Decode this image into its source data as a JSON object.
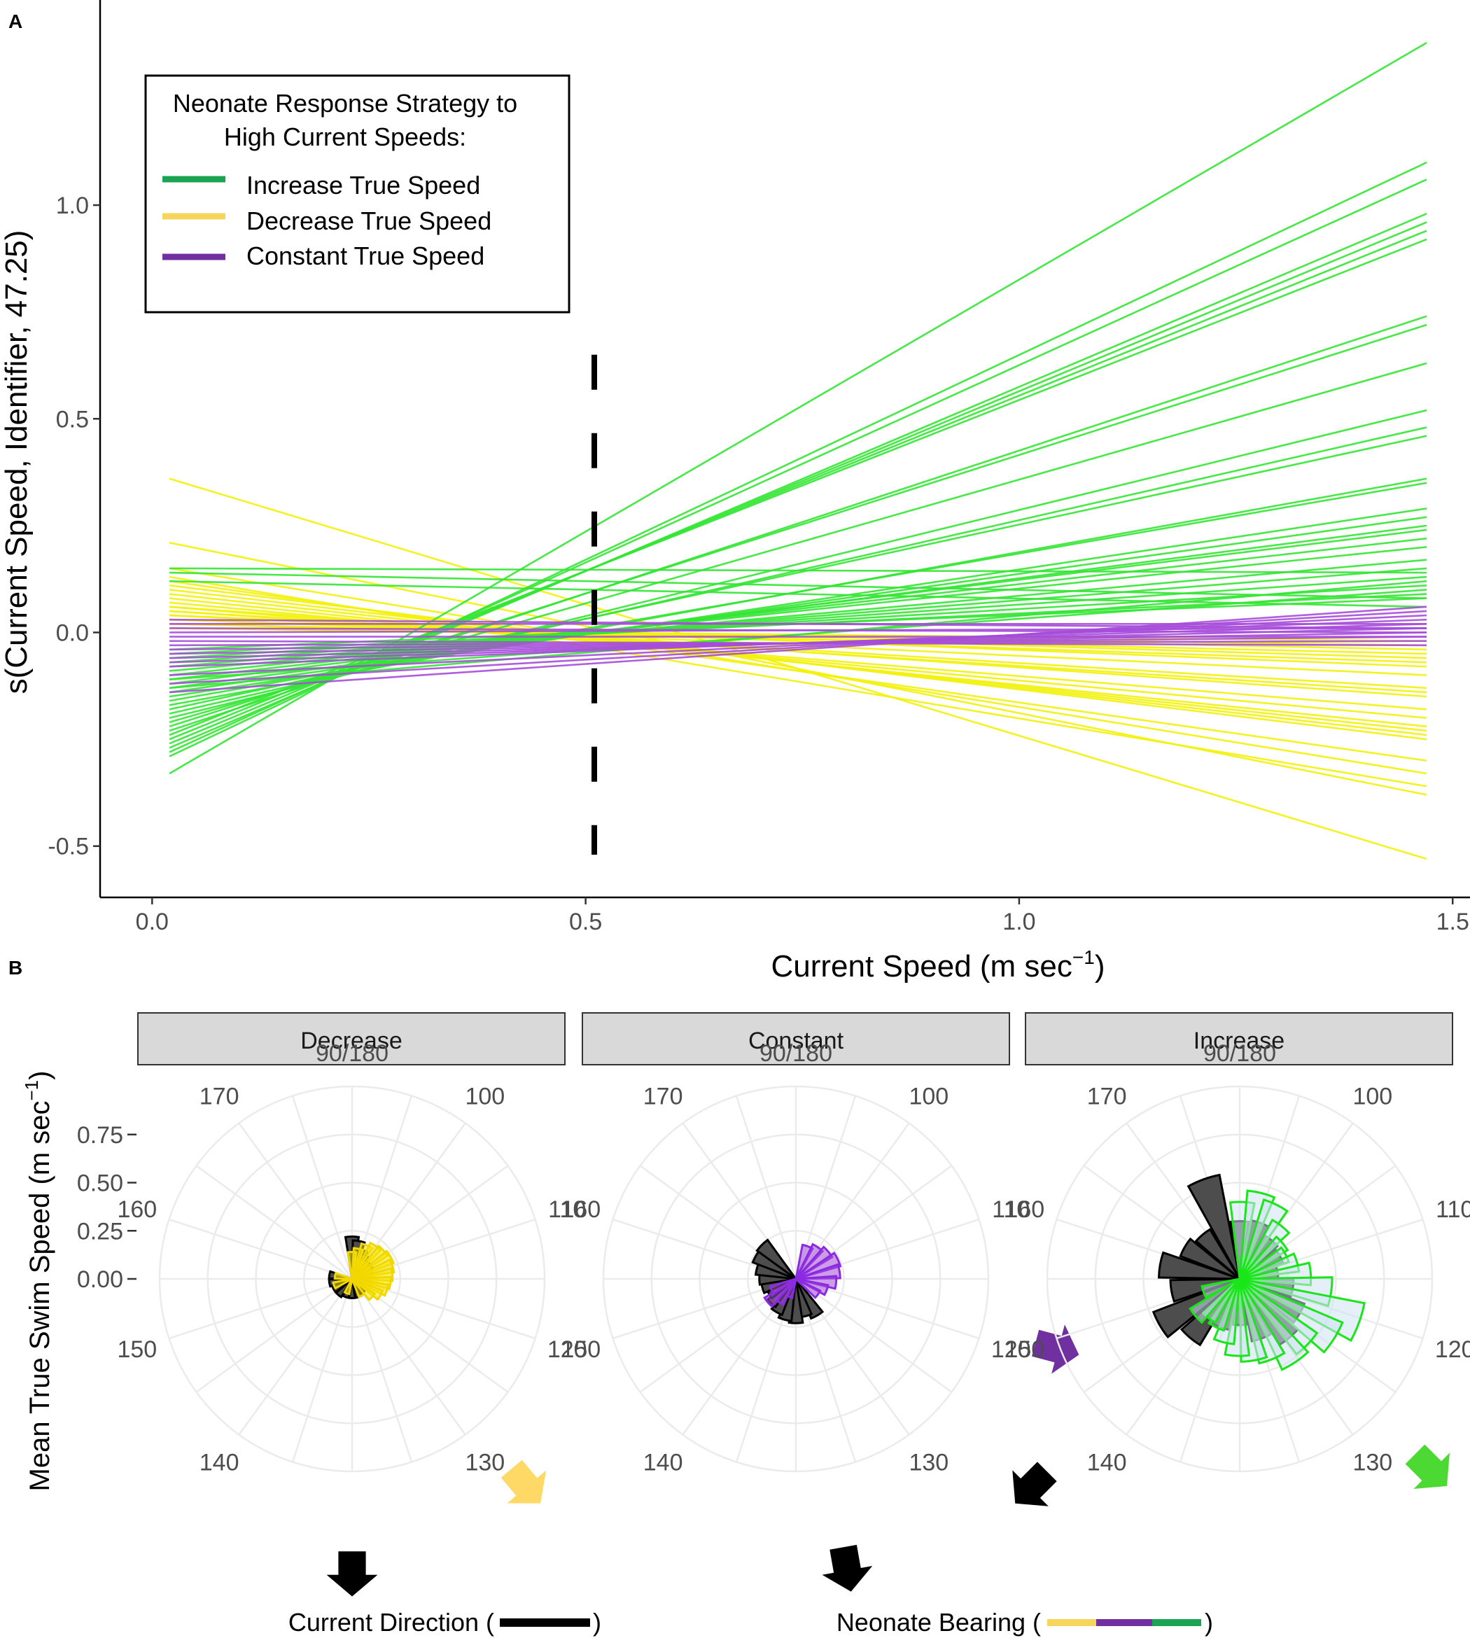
{
  "chart_data": [
    {
      "panel": "A",
      "type": "line",
      "xlabel_main": "Current Speed (m sec",
      "xlabel_sup": "−1",
      "xlabel_close": ")",
      "ylabel": "s(Current Speed, Identifier, 47.25)",
      "xlim": [
        -0.06,
        1.52
      ],
      "ylim": [
        -0.62,
        1.48
      ],
      "x_ticks": [
        {
          "v": 0.0,
          "label": "0.0"
        },
        {
          "v": 0.5,
          "label": "0.5"
        },
        {
          "v": 1.0,
          "label": "1.0"
        },
        {
          "v": 1.5,
          "label": "1.5"
        }
      ],
      "y_ticks": [
        {
          "v": -0.5,
          "label": "-0.5"
        },
        {
          "v": 0.0,
          "label": "0.0"
        },
        {
          "v": 0.5,
          "label": "0.5"
        },
        {
          "v": 1.0,
          "label": "1.0"
        }
      ],
      "vline": {
        "x": 0.51,
        "style": "dashed",
        "y_range": [
          -0.52,
          0.65
        ]
      },
      "legend": {
        "title_line1": "Neonate Response Strategy to",
        "title_line2": "High Current Speeds:",
        "entries": [
          {
            "label": "Increase True Speed",
            "color": "#1aa352"
          },
          {
            "label": "Decrease True Speed",
            "color": "#f5d55c"
          },
          {
            "label": "Constant True Speed",
            "color": "#7030a0"
          }
        ]
      },
      "x_start": 0.02,
      "x_end": 1.47,
      "series": [
        {
          "name": "Decrease True Speed",
          "color": "#f2f20c",
          "lines": [
            [
              0.36,
              -0.53
            ],
            [
              0.21,
              -0.38
            ],
            [
              0.15,
              -0.33
            ],
            [
              0.13,
              -0.36
            ],
            [
              0.12,
              -0.3
            ],
            [
              0.11,
              -0.25
            ],
            [
              0.1,
              -0.24
            ],
            [
              0.09,
              -0.23
            ],
            [
              0.08,
              -0.22
            ],
            [
              0.07,
              -0.2
            ],
            [
              0.06,
              -0.18
            ],
            [
              0.06,
              -0.15
            ],
            [
              0.05,
              -0.14
            ],
            [
              0.05,
              -0.13
            ],
            [
              0.04,
              -0.1
            ],
            [
              0.04,
              -0.08
            ],
            [
              0.03,
              -0.07
            ],
            [
              0.03,
              -0.06
            ],
            [
              0.02,
              -0.05
            ],
            [
              0.02,
              -0.04
            ],
            [
              0.01,
              -0.03
            ],
            [
              0.01,
              -0.02
            ]
          ]
        },
        {
          "name": "Increase True Speed",
          "color": "#33e633",
          "lines": [
            [
              -0.33,
              1.38
            ],
            [
              -0.29,
              1.1
            ],
            [
              -0.28,
              1.06
            ],
            [
              -0.27,
              0.98
            ],
            [
              -0.26,
              0.96
            ],
            [
              -0.25,
              0.94
            ],
            [
              -0.24,
              0.92
            ],
            [
              -0.23,
              0.74
            ],
            [
              -0.22,
              0.72
            ],
            [
              -0.21,
              0.63
            ],
            [
              -0.2,
              0.52
            ],
            [
              -0.19,
              0.48
            ],
            [
              -0.18,
              0.46
            ],
            [
              -0.17,
              0.36
            ],
            [
              -0.16,
              0.35
            ],
            [
              -0.15,
              0.29
            ],
            [
              -0.14,
              0.27
            ],
            [
              -0.13,
              0.25
            ],
            [
              -0.12,
              0.24
            ],
            [
              -0.11,
              0.22
            ],
            [
              -0.1,
              0.2
            ],
            [
              -0.09,
              0.17
            ],
            [
              -0.08,
              0.15
            ],
            [
              -0.07,
              0.13
            ],
            [
              -0.06,
              0.11
            ],
            [
              -0.05,
              0.09
            ],
            [
              -0.04,
              0.08
            ],
            [
              0.15,
              0.14
            ],
            [
              0.14,
              0.08
            ],
            [
              0.12,
              0.06
            ],
            [
              -0.13,
              0.12
            ],
            [
              -0.11,
              0.1
            ]
          ]
        },
        {
          "name": "Constant True Speed",
          "color": "#a64dd9",
          "lines": [
            [
              -0.14,
              0.06
            ],
            [
              -0.12,
              0.05
            ],
            [
              -0.1,
              0.04
            ],
            [
              -0.08,
              0.03
            ],
            [
              -0.07,
              0.02
            ],
            [
              -0.06,
              0.01
            ],
            [
              -0.05,
              0.0
            ],
            [
              -0.04,
              -0.01
            ],
            [
              -0.03,
              -0.02
            ],
            [
              -0.02,
              -0.03
            ],
            [
              -0.01,
              -0.01
            ],
            [
              0.0,
              0.01
            ],
            [
              0.01,
              0.0
            ],
            [
              0.02,
              0.02
            ],
            [
              0.03,
              0.01
            ]
          ]
        }
      ]
    },
    {
      "panel": "B",
      "type": "rose",
      "ylabel_main": "Mean True Swim Speed (m sec",
      "ylabel_sup": "−1",
      "ylabel_close": ")",
      "r_ticks": [
        {
          "v": 0.75,
          "label": "0.75"
        },
        {
          "v": 0.5,
          "label": "0.50"
        },
        {
          "v": 0.25,
          "label": "0.25"
        },
        {
          "v": 0.0,
          "label": "0.00"
        }
      ],
      "r_max": 1.0,
      "angle_labels": [
        {
          "label": "90/180",
          "deg": 0
        },
        {
          "label": "100",
          "deg": 36
        },
        {
          "label": "110",
          "deg": 72
        },
        {
          "label": "120",
          "deg": 108
        },
        {
          "label": "130",
          "deg": 144
        },
        {
          "label": "140",
          "deg": 216
        },
        {
          "label": "150",
          "deg": 252
        },
        {
          "label": "160",
          "deg": 288
        },
        {
          "label": "170",
          "deg": 324
        }
      ],
      "facets": [
        {
          "label": "Decrease",
          "bearing_color": "#f5e600",
          "bearing_edge": "#f2d600",
          "bearing_arrow_color": "#ffd966",
          "current_sectors": [
            [
              0,
              0.22
            ],
            [
              10,
              0.2
            ],
            [
              20,
              0.16
            ],
            [
              30,
              0.14
            ],
            [
              40,
              0.12
            ],
            [
              50,
              0.12
            ],
            [
              60,
              0.11
            ],
            [
              80,
              0.1
            ],
            [
              100,
              0.1
            ],
            [
              120,
              0.09
            ],
            [
              140,
              0.09
            ],
            [
              160,
              0.1
            ],
            [
              180,
              0.1
            ],
            [
              200,
              0.1
            ],
            [
              220,
              0.11
            ],
            [
              240,
              0.11
            ],
            [
              260,
              0.12
            ],
            [
              280,
              0.12
            ]
          ],
          "bearing_sectors": [
            [
              0,
              0.14
            ],
            [
              12,
              0.16
            ],
            [
              24,
              0.19
            ],
            [
              36,
              0.21
            ],
            [
              48,
              0.22
            ],
            [
              60,
              0.23
            ],
            [
              72,
              0.22
            ],
            [
              84,
              0.21
            ],
            [
              96,
              0.2
            ],
            [
              108,
              0.19
            ],
            [
              120,
              0.17
            ],
            [
              132,
              0.14
            ],
            [
              150,
              0.1
            ],
            [
              200,
              0.08
            ],
            [
              250,
              0.1
            ],
            [
              280,
              0.09
            ]
          ],
          "current_arrow_deg": 180,
          "bearing_arrow_deg": 140
        },
        {
          "label": "Constant",
          "bearing_color": "#a64dd9",
          "bearing_edge": "#8a2be2",
          "bearing_arrow_color": "#7030a0",
          "current_sectors": [
            [
              150,
              0.22
            ],
            [
              165,
              0.2
            ],
            [
              180,
              0.23
            ],
            [
              195,
              0.22
            ],
            [
              210,
              0.2
            ],
            [
              225,
              0.18
            ],
            [
              240,
              0.16
            ],
            [
              255,
              0.18
            ],
            [
              270,
              0.19
            ],
            [
              285,
              0.21
            ],
            [
              300,
              0.24
            ],
            [
              315,
              0.25
            ]
          ],
          "bearing_sectors": [
            [
              20,
              0.18
            ],
            [
              35,
              0.2
            ],
            [
              50,
              0.22
            ],
            [
              65,
              0.24
            ],
            [
              80,
              0.23
            ],
            [
              95,
              0.21
            ],
            [
              110,
              0.17
            ],
            [
              125,
              0.14
            ],
            [
              200,
              0.1
            ],
            [
              215,
              0.15
            ],
            [
              230,
              0.19
            ],
            [
              245,
              0.14
            ]
          ],
          "current_arrow_deg": 170,
          "bearing_arrow_deg": 105
        },
        {
          "label": "Increase",
          "bearing_color": "#cfe2f3",
          "bearing_edge": "#19e619",
          "bearing_arrow_color": "#4dd933",
          "current_sectors": [
            [
              0,
              0.3
            ],
            [
              20,
              0.31
            ],
            [
              40,
              0.26
            ],
            [
              60,
              0.24
            ],
            [
              80,
              0.2
            ],
            [
              100,
              0.28
            ],
            [
              120,
              0.36
            ],
            [
              140,
              0.4
            ],
            [
              160,
              0.33
            ],
            [
              180,
              0.24
            ],
            [
              200,
              0.27
            ],
            [
              220,
              0.4
            ],
            [
              240,
              0.48
            ],
            [
              260,
              0.36
            ],
            [
              280,
              0.42
            ],
            [
              300,
              0.33
            ],
            [
              320,
              0.3
            ],
            [
              340,
              0.55
            ]
          ],
          "bearing_sectors": [
            [
              2,
              0.4
            ],
            [
              14,
              0.46
            ],
            [
              26,
              0.43
            ],
            [
              38,
              0.35
            ],
            [
              50,
              0.29
            ],
            [
              62,
              0.27
            ],
            [
              74,
              0.31
            ],
            [
              86,
              0.37
            ],
            [
              98,
              0.48
            ],
            [
              110,
              0.66
            ],
            [
              122,
              0.58
            ],
            [
              134,
              0.49
            ],
            [
              146,
              0.52
            ],
            [
              158,
              0.45
            ],
            [
              170,
              0.43
            ],
            [
              182,
              0.4
            ],
            [
              194,
              0.34
            ],
            [
              206,
              0.28
            ],
            [
              218,
              0.26
            ],
            [
              230,
              0.3
            ],
            [
              250,
              0.2
            ]
          ],
          "current_arrow_deg": 225,
          "bearing_arrow_deg": 135
        }
      ],
      "bottom_legend": {
        "current_label": "Current Direction (",
        "current_close": ")",
        "bearing_label": "Neonate  Bearing (",
        "bearing_close": ")",
        "bearing_bar_colors": [
          "#f5d55c",
          "#7030a0",
          "#1aa352"
        ]
      }
    }
  ],
  "labels": {
    "panel_a": "A",
    "panel_b": "B"
  }
}
